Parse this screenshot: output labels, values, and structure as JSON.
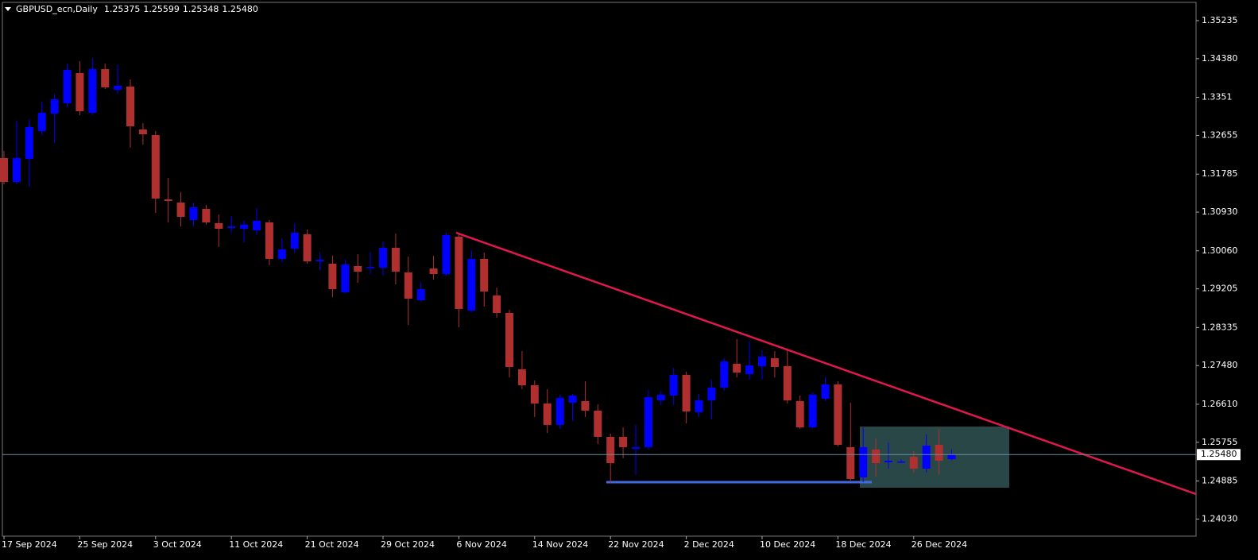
{
  "chart_data": {
    "type": "candlestick",
    "header": {
      "symbol": "GBPUSD_ecn,Daily",
      "open": "1.25375",
      "high": "1.25599",
      "low": "1.25348",
      "close": "1.25480"
    },
    "categories": [
      "17 Sep 2024",
      null,
      null,
      null,
      null,
      null,
      "25 Sep 2024",
      null,
      null,
      null,
      null,
      null,
      "3 Oct 2024",
      null,
      null,
      null,
      null,
      null,
      "11 Oct 2024",
      null,
      null,
      null,
      null,
      null,
      "21 Oct 2024",
      null,
      null,
      null,
      null,
      null,
      "29 Oct 2024",
      null,
      null,
      null,
      null,
      null,
      "6 Nov 2024",
      null,
      null,
      null,
      null,
      null,
      "14 Nov 2024",
      null,
      null,
      null,
      null,
      null,
      "22 Nov 2024",
      null,
      null,
      null,
      null,
      null,
      "2 Dec 2024",
      null,
      null,
      null,
      null,
      null,
      "10 Dec 2024",
      null,
      null,
      null,
      null,
      null,
      "18 Dec 2024",
      null,
      null,
      null,
      null,
      null,
      "26 Dec 2024",
      null,
      null,
      null
    ],
    "open": [
      1.32145,
      1.3161,
      1.32128,
      1.32752,
      1.33145,
      1.33378,
      1.34056,
      1.33163,
      1.34145,
      1.33681,
      1.33753,
      1.32788,
      1.32663,
      1.31217,
      1.31146,
      1.30753,
      1.31003,
      1.30681,
      1.30574,
      1.30556,
      1.30521,
      1.30699,
      1.29878,
      1.3011,
      1.30431,
      1.29824,
      1.29771,
      1.29128,
      1.29717,
      1.29681,
      1.29681,
      1.30128,
      1.29574,
      1.28949,
      1.29663,
      1.29538,
      1.30378,
      1.28717,
      1.29878,
      1.29056,
      1.28663,
      1.27396,
      1.27038,
      1.26628,
      1.26146,
      1.26646,
      1.26681,
      1.26467,
      1.25878,
      1.25878,
      1.2561,
      1.25646,
      1.26699,
      1.26806,
      1.27271,
      1.26431,
      1.26699,
      1.26985,
      1.2752,
      1.27288,
      1.27467,
      1.27645,
      1.27467,
      1.26681,
      1.26092,
      1.26735,
      1.27056,
      1.25646,
      1.24967,
      1.25592,
      1.25306,
      1.25306,
      1.25431,
      1.25163,
      1.25699,
      1.25375
    ],
    "high": [
      1.32306,
      1.32985,
      1.3302,
      1.33413,
      1.33592,
      1.3427,
      1.34324,
      1.34395,
      1.3427,
      1.34235,
      1.33913,
      1.32931,
      1.32752,
      1.31699,
      1.31378,
      1.31146,
      1.31092,
      1.30878,
      1.30842,
      1.30735,
      1.31021,
      1.30753,
      1.30342,
      1.30681,
      1.30538,
      1.30021,
      1.29949,
      1.2986,
      1.29985,
      1.30039,
      1.30271,
      1.30449,
      1.29931,
      1.2936,
      1.29949,
      1.30467,
      1.30449,
      1.30074,
      1.30021,
      1.29235,
      1.28735,
      1.27806,
      1.27145,
      1.26949,
      1.26824,
      1.26842,
      1.27128,
      1.2661,
      1.25949,
      1.26092,
      1.26146,
      1.26931,
      1.26913,
      1.27431,
      1.27342,
      1.26842,
      1.27163,
      1.27645,
      1.28074,
      1.2802,
      1.27824,
      1.27806,
      1.27842,
      1.26806,
      1.26878,
      1.27235,
      1.27128,
      1.26646,
      1.26092,
      1.25842,
      1.25753,
      1.25378,
      1.25556,
      1.25931,
      1.26056,
      1.25599
    ],
    "low": [
      1.31556,
      1.31556,
      1.31503,
      1.32663,
      1.32485,
      1.33288,
      1.3311,
      1.3311,
      1.33699,
      1.33592,
      1.32378,
      1.32449,
      1.30914,
      1.30699,
      1.3061,
      1.3061,
      1.30646,
      1.30146,
      1.30467,
      1.30253,
      1.30413,
      1.29735,
      1.29806,
      1.30021,
      1.29771,
      1.29628,
      1.29021,
      1.29092,
      1.29342,
      1.29538,
      1.29503,
      1.29306,
      1.28396,
      1.28913,
      1.29413,
      1.29485,
      1.28342,
      1.28681,
      1.28806,
      1.28556,
      1.27217,
      1.26949,
      1.26324,
      1.25967,
      1.26056,
      1.26235,
      1.26324,
      1.25717,
      1.24842,
      1.25396,
      1.25021,
      1.25592,
      1.26592,
      1.26592,
      1.26181,
      1.26324,
      1.26271,
      1.26913,
      1.27217,
      1.27163,
      1.27163,
      1.27217,
      1.26628,
      1.26056,
      1.26056,
      1.26681,
      1.25663,
      1.24896,
      1.2486,
      1.24985,
      1.25163,
      1.25288,
      1.25074,
      1.25074,
      1.25021,
      1.25348
    ],
    "close": [
      1.3161,
      1.32145,
      1.32842,
      1.33163,
      1.33467,
      1.34128,
      1.33199,
      1.34145,
      1.33735,
      1.3377,
      1.3286,
      1.32681,
      1.31235,
      1.31181,
      1.30824,
      1.31039,
      1.30699,
      1.30556,
      1.3061,
      1.30646,
      1.30735,
      1.29878,
      1.30092,
      1.30467,
      1.29824,
      1.2986,
      1.29199,
      1.29753,
      1.29592,
      1.29699,
      1.30128,
      1.29592,
      1.28985,
      1.29199,
      1.29538,
      1.30413,
      1.28753,
      1.29878,
      1.29146,
      1.28663,
      1.27449,
      1.27038,
      1.26628,
      1.26146,
      1.26753,
      1.26806,
      1.26467,
      1.25878,
      1.25288,
      1.25646,
      1.25646,
      1.26771,
      1.26824,
      1.27271,
      1.26449,
      1.26699,
      1.26985,
      1.27574,
      1.27324,
      1.27485,
      1.27681,
      1.27449,
      1.26699,
      1.26092,
      1.26824,
      1.27056,
      1.25699,
      1.24931,
      1.25646,
      1.25288,
      1.25342,
      1.25324,
      1.25163,
      1.25681,
      1.25342,
      1.2548
    ],
    "up_color": "#0000ff",
    "down_color": "#b03030",
    "ylim": [
      1.23645,
      1.35699
    ],
    "yticks": [
      1.35235,
      {
        "value": 1.3438,
        "label": "1.34380"
      },
      1.3351,
      1.32655,
      1.31785,
      {
        "value": 1.3093,
        "label": "1.30930"
      },
      {
        "value": 1.3006,
        "label": "1.30060"
      },
      1.29205,
      1.28335,
      {
        "value": 1.2748,
        "label": "1.27480"
      },
      {
        "value": 1.2661,
        "label": "1.26610"
      },
      1.25755,
      1.24885,
      {
        "value": 1.2403,
        "label": "1.24030"
      }
    ]
  }
}
